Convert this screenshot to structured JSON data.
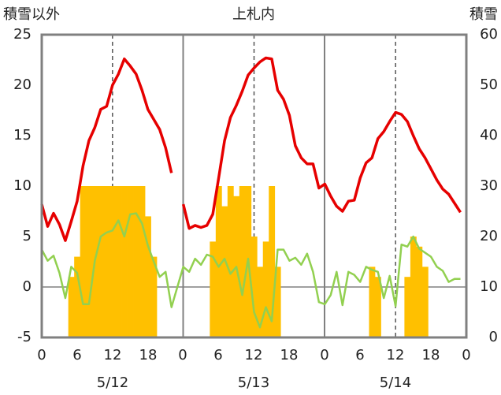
{
  "chart_data": {
    "type": "bar+line",
    "title": "上札内",
    "ylabel_left": "積雪以外",
    "ylabel_right": "積雪",
    "ylim_left": [
      -5,
      25
    ],
    "ylim_right": [
      0,
      60
    ],
    "yticks_left": [
      "-5",
      "0",
      "5",
      "10",
      "15",
      "20",
      "25"
    ],
    "yticks_right": [
      "0",
      "10",
      "20",
      "30",
      "40",
      "50",
      "60"
    ],
    "x_range_hours": [
      0,
      72
    ],
    "x_tick_labels": [
      "0",
      "6",
      "12",
      "18",
      "0",
      "6",
      "12",
      "18",
      "0",
      "6",
      "12",
      "18",
      "0"
    ],
    "day_labels": [
      "5/12",
      "5/13",
      "5/14"
    ],
    "colors": {
      "temp": "#e60000",
      "other": "#92d050",
      "snow": "#ffc000",
      "frame": "#808080"
    },
    "series": [
      {
        "role": "temp",
        "axis": "left",
        "points": [
          [
            0,
            8.2
          ],
          [
            1,
            6.0
          ],
          [
            2,
            7.3
          ],
          [
            3,
            6.2
          ],
          [
            4,
            4.6
          ],
          [
            5,
            6.5
          ],
          [
            6,
            8.5
          ],
          [
            7,
            12.0
          ],
          [
            8,
            14.5
          ],
          [
            9,
            15.8
          ],
          [
            10,
            17.6
          ],
          [
            11,
            17.9
          ],
          [
            12,
            20.0
          ],
          [
            13,
            21.1
          ],
          [
            14,
            22.6
          ],
          [
            15,
            21.9
          ],
          [
            16,
            21.1
          ],
          [
            17,
            19.5
          ],
          [
            18,
            17.6
          ],
          [
            19,
            16.6
          ],
          [
            20,
            15.6
          ],
          [
            21,
            13.8
          ],
          [
            22,
            11.3
          ],
          [
            24,
            8.2
          ],
          [
            25,
            5.8
          ],
          [
            26,
            6.1
          ],
          [
            27,
            5.9
          ],
          [
            28,
            6.1
          ],
          [
            29,
            7.2
          ],
          [
            30,
            10.8
          ],
          [
            31,
            14.5
          ],
          [
            32,
            16.8
          ],
          [
            33,
            18.0
          ],
          [
            34,
            19.4
          ],
          [
            35,
            21.0
          ],
          [
            36,
            21.7
          ],
          [
            37,
            22.3
          ],
          [
            38,
            22.7
          ],
          [
            39,
            22.6
          ],
          [
            40,
            19.5
          ],
          [
            41,
            18.6
          ],
          [
            42,
            17.0
          ],
          [
            43,
            14.0
          ],
          [
            44,
            12.8
          ],
          [
            45,
            12.2
          ],
          [
            46,
            12.2
          ],
          [
            47,
            9.8
          ],
          [
            48,
            10.2
          ],
          [
            49,
            9.0
          ],
          [
            50,
            8.0
          ],
          [
            51,
            7.5
          ],
          [
            52,
            8.5
          ],
          [
            53,
            8.6
          ],
          [
            54,
            10.8
          ],
          [
            55,
            12.3
          ],
          [
            56,
            12.8
          ],
          [
            57,
            14.7
          ],
          [
            58,
            15.4
          ],
          [
            59,
            16.4
          ],
          [
            60,
            17.3
          ],
          [
            61,
            17.1
          ],
          [
            62,
            16.4
          ],
          [
            63,
            15.0
          ],
          [
            64,
            13.7
          ],
          [
            65,
            12.8
          ],
          [
            66,
            11.7
          ],
          [
            67,
            10.6
          ],
          [
            68,
            9.7
          ],
          [
            69,
            9.2
          ],
          [
            70,
            8.3
          ],
          [
            71,
            7.4
          ]
        ]
      },
      {
        "role": "other",
        "axis": "left",
        "points": [
          [
            0,
            3.7
          ],
          [
            1,
            2.6
          ],
          [
            2,
            3.1
          ],
          [
            3,
            1.4
          ],
          [
            4,
            -1.1
          ],
          [
            5,
            2.0
          ],
          [
            6,
            1.4
          ],
          [
            7,
            -1.7
          ],
          [
            8,
            -1.7
          ],
          [
            9,
            2.6
          ],
          [
            10,
            5.0
          ],
          [
            11,
            5.4
          ],
          [
            12,
            5.6
          ],
          [
            13,
            6.6
          ],
          [
            14,
            5.0
          ],
          [
            15,
            7.2
          ],
          [
            16,
            7.3
          ],
          [
            17,
            6.3
          ],
          [
            18,
            4.1
          ],
          [
            19,
            2.5
          ],
          [
            20,
            1.0
          ],
          [
            21,
            1.5
          ],
          [
            22,
            -2.0
          ],
          [
            24,
            2.0
          ],
          [
            25,
            1.5
          ],
          [
            26,
            2.8
          ],
          [
            27,
            2.2
          ],
          [
            28,
            3.2
          ],
          [
            29,
            3.0
          ],
          [
            30,
            2.0
          ],
          [
            31,
            2.8
          ],
          [
            32,
            1.3
          ],
          [
            33,
            2.0
          ],
          [
            34,
            -0.8
          ],
          [
            35,
            2.8
          ],
          [
            36,
            -2.5
          ],
          [
            37,
            -4.0
          ],
          [
            38,
            -2.0
          ],
          [
            39,
            -3.4
          ],
          [
            40,
            3.7
          ],
          [
            41,
            3.7
          ],
          [
            42,
            2.6
          ],
          [
            43,
            2.9
          ],
          [
            44,
            2.2
          ],
          [
            45,
            3.3
          ],
          [
            46,
            1.5
          ],
          [
            47,
            -1.5
          ],
          [
            48,
            -1.7
          ],
          [
            49,
            -0.8
          ],
          [
            50,
            1.5
          ],
          [
            51,
            -1.8
          ],
          [
            52,
            1.5
          ],
          [
            53,
            1.2
          ],
          [
            54,
            0.5
          ],
          [
            55,
            2.0
          ],
          [
            56,
            1.7
          ],
          [
            57,
            1.5
          ],
          [
            58,
            -1.1
          ],
          [
            59,
            1.1
          ],
          [
            60,
            -1.9
          ],
          [
            61,
            4.2
          ],
          [
            62,
            4.0
          ],
          [
            63,
            5.0
          ],
          [
            64,
            3.8
          ],
          [
            65,
            3.4
          ],
          [
            66,
            3.0
          ],
          [
            67,
            2.0
          ],
          [
            68,
            1.6
          ],
          [
            69,
            0.5
          ],
          [
            70,
            0.8
          ],
          [
            71,
            0.8
          ]
        ]
      },
      {
        "role": "snow",
        "axis": "right",
        "bars": [
          [
            5,
            12
          ],
          [
            6,
            16
          ],
          [
            7,
            30
          ],
          [
            8,
            30
          ],
          [
            9,
            30
          ],
          [
            10,
            30
          ],
          [
            11,
            30
          ],
          [
            12,
            30
          ],
          [
            13,
            30
          ],
          [
            14,
            30
          ],
          [
            15,
            30
          ],
          [
            16,
            30
          ],
          [
            17,
            30
          ],
          [
            18,
            24
          ],
          [
            19,
            16
          ],
          [
            29,
            19
          ],
          [
            30,
            30
          ],
          [
            31,
            26
          ],
          [
            32,
            30
          ],
          [
            33,
            28
          ],
          [
            34,
            30
          ],
          [
            35,
            30
          ],
          [
            36,
            20
          ],
          [
            37,
            14
          ],
          [
            38,
            19
          ],
          [
            39,
            30
          ],
          [
            40,
            14
          ],
          [
            56,
            14
          ],
          [
            57,
            12
          ],
          [
            62,
            12
          ],
          [
            63,
            20
          ],
          [
            64,
            18
          ],
          [
            65,
            14
          ]
        ]
      }
    ]
  }
}
